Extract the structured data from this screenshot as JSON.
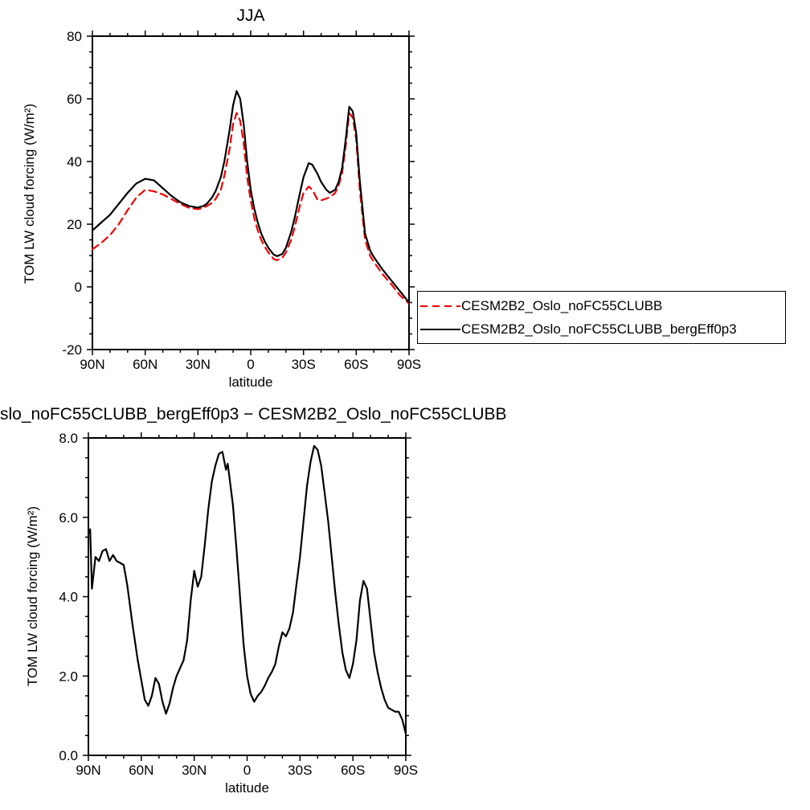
{
  "chart_data": [
    {
      "id": "top",
      "type": "line",
      "title": "JJA",
      "xlabel": "latitude",
      "ylabel": "TOM LW cloud forcing (W/m²)",
      "xlim": [
        90,
        -90
      ],
      "ylim": [
        -20,
        80
      ],
      "grid": false,
      "legend_position": "outside-right",
      "xticks": [
        {
          "v": 90,
          "label": "90N"
        },
        {
          "v": 60,
          "label": "60N"
        },
        {
          "v": 30,
          "label": "30N"
        },
        {
          "v": 0,
          "label": "0"
        },
        {
          "v": -30,
          "label": "30S"
        },
        {
          "v": -60,
          "label": "60S"
        },
        {
          "v": -90,
          "label": "90S"
        }
      ],
      "yticks": [
        {
          "v": -20,
          "label": "-20"
        },
        {
          "v": 0,
          "label": "0"
        },
        {
          "v": 20,
          "label": "20"
        },
        {
          "v": 40,
          "label": "40"
        },
        {
          "v": 60,
          "label": "60"
        },
        {
          "v": 80,
          "label": "80"
        }
      ],
      "x_minor_step": 10,
      "y_minor_step": 5,
      "series": [
        {
          "name": "CESM2B2_Oslo_noFC55CLUBB",
          "color": "#ee0000",
          "style": "dashed",
          "x": [
            90,
            85,
            80,
            75,
            70,
            65,
            60,
            55,
            50,
            45,
            40,
            35,
            30,
            27,
            25,
            22,
            20,
            17,
            15,
            12,
            10,
            8,
            6,
            4,
            2,
            0,
            -2,
            -4,
            -6,
            -8,
            -10,
            -13,
            -15,
            -18,
            -20,
            -23,
            -25,
            -28,
            -30,
            -33,
            -35,
            -38,
            -40,
            -43,
            -45,
            -48,
            -50,
            -52,
            -54,
            -56,
            -58,
            -60,
            -62,
            -65,
            -68,
            -70,
            -75,
            -80,
            -85,
            -90
          ],
          "y": [
            12,
            14,
            16.5,
            20,
            24.5,
            28.5,
            31,
            30.5,
            29.5,
            28,
            26.5,
            25.2,
            24.8,
            25.2,
            25.8,
            26.8,
            28,
            31,
            35.5,
            44,
            52,
            55.5,
            53,
            46,
            35,
            27.5,
            22,
            18,
            15,
            12.8,
            11,
            8.9,
            8.5,
            9.3,
            11,
            15,
            19,
            26,
            30,
            32,
            31,
            27.8,
            27.6,
            28.2,
            28.6,
            30,
            32.3,
            36.5,
            45,
            55.5,
            54,
            47,
            31,
            15,
            9.8,
            8,
            4,
            0.8,
            -2.8,
            -5.3
          ]
        },
        {
          "name": "CESM2B2_Oslo_noFC55CLUBB_bergEff0p3",
          "color": "#000000",
          "style": "solid",
          "x": [
            90,
            85,
            80,
            75,
            70,
            65,
            60,
            55,
            50,
            45,
            40,
            35,
            30,
            27,
            25,
            22,
            20,
            17,
            15,
            12,
            10,
            8,
            6,
            4,
            2,
            0,
            -2,
            -4,
            -6,
            -8,
            -10,
            -13,
            -15,
            -18,
            -20,
            -23,
            -25,
            -28,
            -30,
            -33,
            -35,
            -38,
            -40,
            -43,
            -45,
            -48,
            -50,
            -52,
            -54,
            -56,
            -58,
            -60,
            -62,
            -65,
            -68,
            -70,
            -75,
            -80,
            -85,
            -90
          ],
          "y": [
            18,
            20.5,
            23,
            26.5,
            30,
            33,
            34.5,
            34,
            31.5,
            29,
            27,
            25.8,
            25.3,
            25.8,
            26.5,
            28.5,
            30.5,
            35,
            40,
            50,
            58,
            62.5,
            60,
            52,
            40,
            31,
            25,
            20.5,
            17,
            14.5,
            12.5,
            10.3,
            9.8,
            10.5,
            12.5,
            17.5,
            22,
            30,
            35,
            39.5,
            39,
            36,
            33.5,
            31,
            30,
            31,
            33.5,
            38,
            47,
            57.5,
            56,
            49,
            34,
            17,
            11.5,
            9.5,
            5.5,
            2,
            -1.5,
            -5
          ]
        }
      ]
    },
    {
      "id": "bottom",
      "type": "line",
      "title": "slo_noFC55CLUBB_bergEff0p3 − CESM2B2_Oslo_noFC55CLUBB",
      "xlabel": "latitude",
      "ylabel": "TOM LW cloud forcing (W/m²)",
      "xlim": [
        90,
        -90
      ],
      "ylim": [
        0,
        8
      ],
      "grid": false,
      "xticks": [
        {
          "v": 90,
          "label": "90N"
        },
        {
          "v": 60,
          "label": "60N"
        },
        {
          "v": 30,
          "label": "30N"
        },
        {
          "v": 0,
          "label": "0"
        },
        {
          "v": -30,
          "label": "30S"
        },
        {
          "v": -60,
          "label": "60S"
        },
        {
          "v": -90,
          "label": "90S"
        }
      ],
      "yticks": [
        {
          "v": 0,
          "label": "0.0"
        },
        {
          "v": 2,
          "label": "2.0"
        },
        {
          "v": 4,
          "label": "4.0"
        },
        {
          "v": 6,
          "label": "6.0"
        },
        {
          "v": 8,
          "label": "8.0"
        }
      ],
      "x_minor_step": 10,
      "y_minor_step": 0.5,
      "series": [
        {
          "color": "#000000",
          "style": "solid",
          "x": [
            90,
            89,
            88,
            86,
            84,
            82,
            80,
            78,
            76,
            74,
            72,
            70,
            68,
            65,
            62,
            60,
            58,
            56,
            54,
            52,
            50,
            48,
            46,
            44,
            42,
            40,
            38,
            36,
            34,
            32,
            30,
            28,
            26,
            24,
            22,
            20,
            18,
            16,
            14,
            12,
            11,
            10,
            8,
            6,
            4,
            2,
            0,
            -2,
            -4,
            -6,
            -8,
            -10,
            -12,
            -14,
            -16,
            -18,
            -20,
            -22,
            -24,
            -26,
            -28,
            -30,
            -32,
            -34,
            -36,
            -38,
            -40,
            -42,
            -44,
            -46,
            -48,
            -50,
            -52,
            -54,
            -56,
            -58,
            -60,
            -62,
            -64,
            -66,
            -68,
            -70,
            -72,
            -74,
            -76,
            -78,
            -80,
            -82,
            -84,
            -86,
            -88,
            -90
          ],
          "y": [
            5.6,
            5.7,
            4.2,
            5.0,
            4.9,
            5.15,
            5.2,
            4.9,
            5.05,
            4.9,
            4.85,
            4.8,
            4.3,
            3.3,
            2.4,
            1.9,
            1.4,
            1.25,
            1.5,
            1.95,
            1.8,
            1.35,
            1.05,
            1.3,
            1.7,
            2.0,
            2.2,
            2.4,
            2.9,
            3.9,
            4.65,
            4.25,
            4.5,
            5.3,
            6.2,
            6.9,
            7.3,
            7.6,
            7.65,
            7.2,
            7.35,
            7.0,
            6.3,
            5.2,
            4.0,
            2.8,
            2.0,
            1.55,
            1.35,
            1.5,
            1.6,
            1.75,
            1.95,
            2.1,
            2.3,
            2.75,
            3.1,
            3.0,
            3.2,
            3.6,
            4.3,
            5.0,
            5.9,
            6.8,
            7.4,
            7.8,
            7.7,
            7.3,
            6.6,
            5.9,
            5.0,
            4.1,
            3.3,
            2.6,
            2.15,
            1.95,
            2.3,
            2.9,
            3.9,
            4.4,
            4.2,
            3.4,
            2.6,
            2.1,
            1.7,
            1.4,
            1.2,
            1.15,
            1.1,
            1.1,
            0.9,
            0.55
          ]
        }
      ]
    }
  ]
}
